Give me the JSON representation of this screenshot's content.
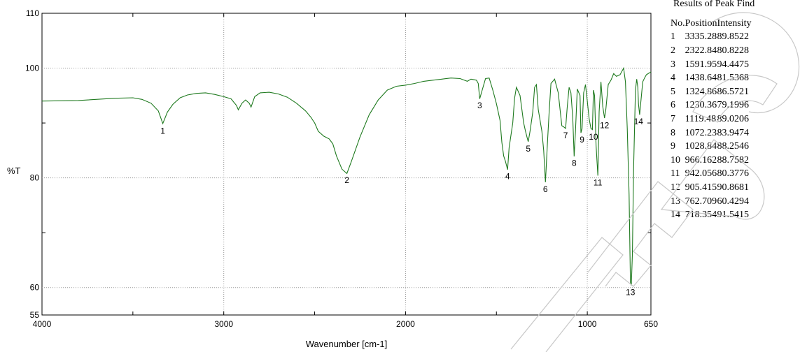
{
  "chart_data": {
    "type": "line",
    "xlabel": "Wavenumber [cm-1]",
    "ylabel": "%T",
    "xlim": [
      4000,
      650
    ],
    "ylim": [
      55,
      110
    ],
    "x_ticks": [
      4000,
      3000,
      2000,
      1000,
      650
    ],
    "x_tick_labels": [
      "4000",
      "3000",
      "2000",
      "1000",
      "650"
    ],
    "y_ticks": [
      55,
      60,
      80,
      100,
      110
    ],
    "y_tick_labels": [
      "55",
      "60",
      "80",
      "100",
      "110"
    ],
    "grid": true,
    "line_color": "#1f7a1f",
    "series": [
      {
        "x": [
          4000,
          3800,
          3600,
          3500,
          3450,
          3400,
          3360,
          3335.28,
          3310,
          3280,
          3240,
          3200,
          3150,
          3100,
          3050,
          3000,
          2960,
          2930,
          2920,
          2900,
          2880,
          2860,
          2850,
          2830,
          2800,
          2750,
          2700,
          2650,
          2600,
          2550,
          2520,
          2500,
          2480,
          2450,
          2420,
          2400,
          2380,
          2350,
          2322.84,
          2300,
          2250,
          2200,
          2150,
          2100,
          2050,
          2000,
          1950,
          1900,
          1850,
          1800,
          1750,
          1700,
          1660,
          1640,
          1610,
          1600,
          1591.95,
          1580,
          1560,
          1540,
          1520,
          1500,
          1480,
          1470,
          1460,
          1450,
          1438.64,
          1430,
          1410,
          1400,
          1390,
          1370,
          1350,
          1340,
          1330,
          1324.86,
          1315,
          1300,
          1290,
          1280,
          1270,
          1250,
          1240,
          1230.36,
          1220,
          1210,
          1200,
          1180,
          1160,
          1140,
          1130,
          1119.48,
          1110,
          1100,
          1090,
          1080,
          1072.23,
          1065,
          1055,
          1040,
          1035,
          1028.84,
          1020,
          1010,
          1000,
          990,
          980,
          972,
          966.162,
          960,
          952,
          942.056,
          935,
          925,
          915,
          905.415,
          898,
          885,
          870,
          855,
          840,
          820,
          800,
          790,
          780,
          770,
          765,
          762.709,
          758,
          752,
          745,
          735,
          728,
          722,
          718.354,
          712,
          705,
          695,
          685,
          675,
          665,
          655,
          650
        ],
        "y": [
          94.0,
          94.1,
          94.5,
          94.6,
          94.3,
          93.6,
          92.2,
          89.9,
          92.0,
          93.4,
          94.6,
          95.1,
          95.4,
          95.5,
          95.2,
          94.8,
          94.4,
          93.2,
          92.4,
          93.6,
          94.2,
          93.6,
          92.9,
          94.8,
          95.5,
          95.6,
          95.3,
          94.7,
          93.6,
          92.2,
          91.0,
          90.0,
          88.5,
          87.6,
          87.1,
          86.2,
          84.0,
          81.6,
          80.8,
          82.8,
          87.5,
          91.5,
          94.2,
          96.0,
          96.7,
          96.9,
          97.2,
          97.6,
          97.8,
          98.0,
          98.2,
          98.1,
          97.6,
          98.0,
          97.8,
          97.2,
          94.4,
          95.8,
          98.1,
          98.2,
          96.0,
          93.5,
          90.5,
          86.5,
          84.0,
          83.0,
          81.5,
          85.5,
          90.0,
          94.5,
          96.5,
          95.0,
          90.0,
          88.5,
          87.2,
          86.6,
          88.5,
          92.0,
          96.5,
          97.0,
          92.5,
          88.5,
          85.0,
          79.2,
          86.0,
          92.0,
          97.2,
          98.0,
          95.5,
          89.5,
          89.3,
          89.0,
          93.0,
          96.5,
          95.5,
          91.0,
          83.9,
          88.5,
          96.2,
          95.0,
          88.2,
          89.0,
          95.5,
          97.0,
          94.0,
          90.8,
          89.0,
          88.8,
          96.0,
          95.0,
          86.0,
          80.4,
          92.0,
          97.5,
          93.0,
          90.9,
          92.5,
          97.0,
          97.8,
          99.0,
          98.5,
          98.8,
          100.0,
          97.5,
          89.0,
          77.0,
          66.0,
          61.0,
          60.4,
          66.0,
          82.0,
          96.0,
          98.0,
          96.5,
          93.5,
          91.5,
          94.0,
          97.5,
          98.2,
          98.8,
          99.0,
          99.2,
          99.3
        ]
      }
    ],
    "peak_labels": [
      {
        "label": "1",
        "x": 3335.28,
        "y": 89.8522
      },
      {
        "label": "2",
        "x": 2322.84,
        "y": 80.8228
      },
      {
        "label": "3",
        "x": 1591.95,
        "y": 94.4475
      },
      {
        "label": "4",
        "x": 1438.64,
        "y": 81.5368
      },
      {
        "label": "5",
        "x": 1324.86,
        "y": 86.5721
      },
      {
        "label": "6",
        "x": 1230.36,
        "y": 79.1996
      },
      {
        "label": "7",
        "x": 1119.48,
        "y": 89.0206
      },
      {
        "label": "8",
        "x": 1072.23,
        "y": 83.9474
      },
      {
        "label": "9",
        "x": 1028.84,
        "y": 88.2546
      },
      {
        "label": "10",
        "x": 966.162,
        "y": 88.7582
      },
      {
        "label": "11",
        "x": 942.056,
        "y": 80.3776
      },
      {
        "label": "12",
        "x": 905.415,
        "y": 90.8681
      },
      {
        "label": "13",
        "x": 762.709,
        "y": 60.4294
      },
      {
        "label": "14",
        "x": 718.354,
        "y": 91.5415
      }
    ]
  },
  "results": {
    "title": "Results of Peak Find",
    "headers": [
      "No.",
      "Position",
      "Intensity"
    ],
    "rows": [
      [
        "1",
        "3335.28",
        "89.8522"
      ],
      [
        "2",
        "2322.84",
        "80.8228"
      ],
      [
        "3",
        "1591.95",
        "94.4475"
      ],
      [
        "4",
        "1438.64",
        "81.5368"
      ],
      [
        "5",
        "1324.86",
        "86.5721"
      ],
      [
        "6",
        "1230.36",
        "79.1996"
      ],
      [
        "7",
        "1119.48",
        "89.0206"
      ],
      [
        "8",
        "1072.23",
        "83.9474"
      ],
      [
        "9",
        "1028.84",
        "88.2546"
      ],
      [
        "10",
        "966.162",
        "88.7582"
      ],
      [
        "11",
        "942.056",
        "80.3776"
      ],
      [
        "12",
        "905.415",
        "90.8681"
      ],
      [
        "13",
        "762.709",
        "60.4294"
      ],
      [
        "14",
        "718.354",
        "91.5415"
      ]
    ]
  }
}
